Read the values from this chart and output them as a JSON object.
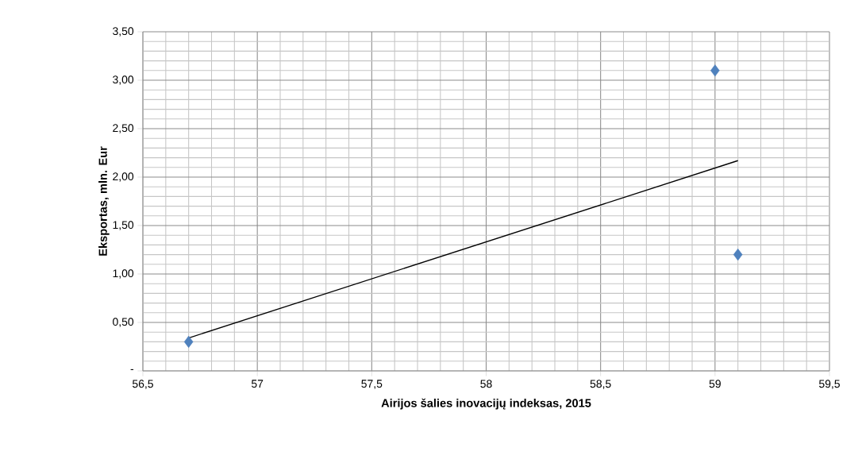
{
  "chart_data": {
    "type": "scatter",
    "xlabel": "Airijos šalies inovacijų indeksas, 2015",
    "ylabel": "Eksportas, mln. Eur",
    "xlim": [
      56.5,
      59.5
    ],
    "xticks": [
      {
        "value": 56.5,
        "label": "56,5"
      },
      {
        "value": 57,
        "label": "57"
      },
      {
        "value": 57.5,
        "label": "57,5"
      },
      {
        "value": 58,
        "label": "58"
      },
      {
        "value": 58.5,
        "label": "58,5"
      },
      {
        "value": 59,
        "label": "59"
      },
      {
        "value": 59.5,
        "label": "59,5"
      }
    ],
    "ylim": [
      0,
      3.5
    ],
    "yticks": [
      {
        "value": 0,
        "label": "-"
      },
      {
        "value": 0.5,
        "label": "0,50"
      },
      {
        "value": 1,
        "label": "1,00"
      },
      {
        "value": 1.5,
        "label": "1,50"
      },
      {
        "value": 2,
        "label": "2,00"
      },
      {
        "value": 2.5,
        "label": "2,50"
      },
      {
        "value": 3,
        "label": "3,00"
      },
      {
        "value": 3.5,
        "label": "3,50"
      }
    ],
    "grid": true,
    "marker": "diamond",
    "series": [
      {
        "color": "#4f81bd",
        "x": [
          56.7,
          59,
          59.1
        ],
        "values": [
          0.3,
          3.1,
          1.2
        ]
      },
      {
        "type": "line",
        "color": "#000000",
        "marker": "none",
        "x": [
          56.7,
          59.1
        ],
        "values": [
          0.34,
          2.17
        ]
      }
    ]
  }
}
